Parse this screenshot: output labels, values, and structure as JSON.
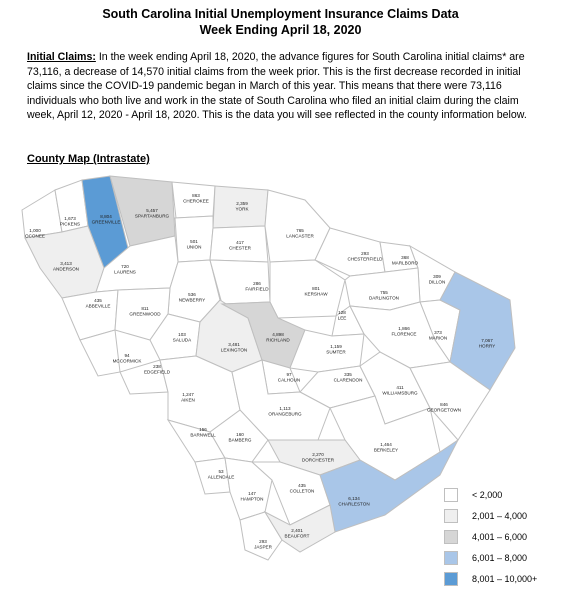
{
  "header": {
    "title_line1": "South Carolina Initial Unemployment Insurance Claims Data",
    "title_line2": "Week Ending April 18, 2020"
  },
  "intro": {
    "lead": "Initial Claims:",
    "body": " In the week ending April 18, 2020, the advance figures for South Carolina initial claims* are 73,116, a decrease of 14,570 initial claims from the week prior. This is the first decrease recorded in initial claims since the COVID-19 pandemic began in March of this year. This means that there were 73,116 individuals who both live and work in the state of South Carolina who filed an initial claim during the claim week, April 12, 2020 - April 18, 2020. This is the data you will see reflected in the county information below."
  },
  "map_heading": "County Map (Intrastate)",
  "colors": {
    "lt2000": "#ffffff",
    "r2001_4000": "#efefef",
    "r4001_6000": "#d6d6d6",
    "r6001_8000": "#a9c6e8",
    "r8001_10000": "#5b9bd5"
  },
  "legend": [
    {
      "label": "< 2,000",
      "color": "#ffffff"
    },
    {
      "label": "2,001 – 4,000",
      "color": "#efefef"
    },
    {
      "label": "4,001 – 6,000",
      "color": "#d6d6d6"
    },
    {
      "label": "6,001 – 8,000",
      "color": "#a9c6e8"
    },
    {
      "label": "8,001 – 10,000+",
      "color": "#5b9bd5"
    }
  ],
  "counties": {
    "oconee": {
      "value": "1,000",
      "name": "OCONEE"
    },
    "pickens": {
      "value": "1,673",
      "name": "PICKENS"
    },
    "greenville": {
      "value": "8,804",
      "name": "GREENVILLE"
    },
    "spartanburg": {
      "value": "5,457",
      "name": "SPARTANBURG"
    },
    "cherokee": {
      "value": "863",
      "name": "CHEROKEE"
    },
    "york": {
      "value": "2,359",
      "name": "YORK"
    },
    "anderson": {
      "value": "3,413",
      "name": "ANDERSON"
    },
    "union": {
      "value": "501",
      "name": "UNION"
    },
    "chester": {
      "value": "417",
      "name": "CHESTER"
    },
    "lancaster": {
      "value": "765",
      "name": "LANCASTER"
    },
    "chesterfield": {
      "value": "293",
      "name": "CHESTERFIELD"
    },
    "marlboro": {
      "value": "368",
      "name": "MARLBORO"
    },
    "dillon": {
      "value": "309",
      "name": "DILLON"
    },
    "laurens": {
      "value": "720",
      "name": "LAURENS"
    },
    "abbeville": {
      "value": "435",
      "name": "ABBEVILLE"
    },
    "greenwood": {
      "value": "811",
      "name": "GREENWOOD"
    },
    "newberry": {
      "value": "536",
      "name": "NEWBERRY"
    },
    "fairfield": {
      "value": "286",
      "name": "FAIRFIELD"
    },
    "kershaw": {
      "value": "801",
      "name": "KERSHAW"
    },
    "darlington": {
      "value": "755",
      "name": "DARLINGTON"
    },
    "lee": {
      "value": "128",
      "name": "LEE"
    },
    "florence": {
      "value": "1,866",
      "name": "FLORENCE"
    },
    "marion": {
      "value": "373",
      "name": "MARION"
    },
    "horry": {
      "value": "7,067",
      "name": "HORRY"
    },
    "mccormick": {
      "value": "94",
      "name": "MCCORMICK"
    },
    "saluda": {
      "value": "103",
      "name": "SALUDA"
    },
    "lexington": {
      "value": "3,481",
      "name": "LEXINGTON"
    },
    "richland": {
      "value": "4,898",
      "name": "RICHLAND"
    },
    "sumter": {
      "value": "1,159",
      "name": "SUMTER"
    },
    "edgefield": {
      "value": "238",
      "name": "EDGEFIELD"
    },
    "calhoun": {
      "value": "97",
      "name": "CALHOUN"
    },
    "clarendon": {
      "value": "335",
      "name": "CLARENDON"
    },
    "williamsburg": {
      "value": "411",
      "name": "WILLIAMSBURG"
    },
    "georgetown": {
      "value": "846",
      "name": "GEORGETOWN"
    },
    "aiken": {
      "value": "1,247",
      "name": "AIKEN"
    },
    "orangeburg": {
      "value": "1,113",
      "name": "ORANGEBURG"
    },
    "barnwell": {
      "value": "156",
      "name": "BARNWELL"
    },
    "bamberg": {
      "value": "160",
      "name": "BAMBERG"
    },
    "berkeley": {
      "value": "1,464",
      "name": "BERKELEY"
    },
    "dorchester": {
      "value": "2,270",
      "name": "DORCHESTER"
    },
    "allendale": {
      "value": "53",
      "name": "ALLENDALE"
    },
    "hampton": {
      "value": "147",
      "name": "HAMPTON"
    },
    "colleton": {
      "value": "435",
      "name": "COLLETON"
    },
    "charleston": {
      "value": "6,134",
      "name": "CHARLESTON"
    },
    "jasper": {
      "value": "293",
      "name": "JASPER"
    },
    "beaufort": {
      "value": "2,401",
      "name": "BEAUFORT"
    }
  }
}
